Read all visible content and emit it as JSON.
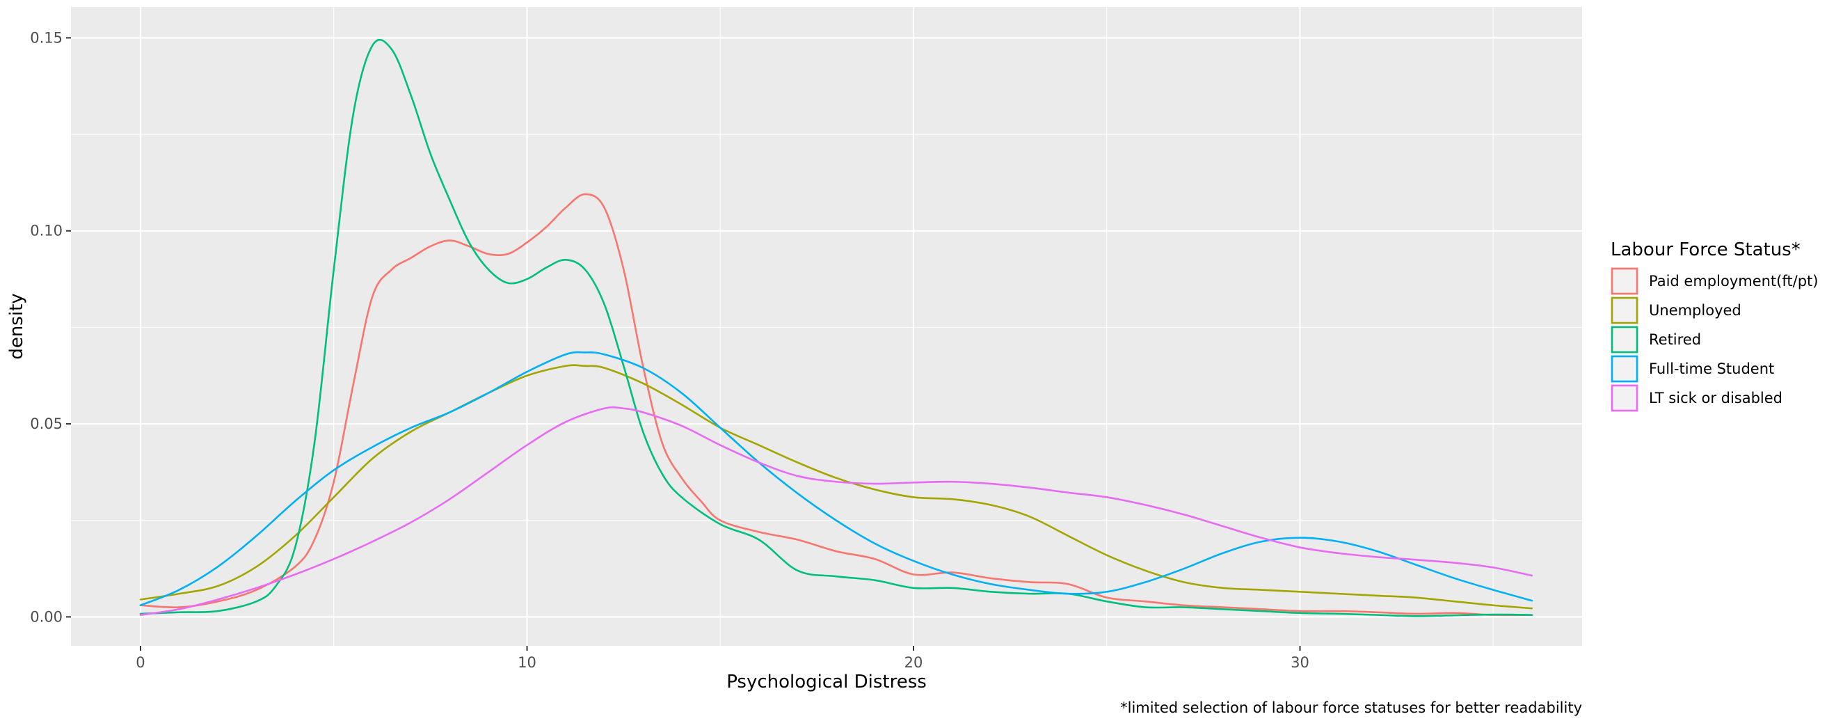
{
  "chart_data": {
    "type": "line",
    "xlabel": "Psychological Distress",
    "ylabel": "density",
    "caption": "*limited selection of labour force statuses for better readability",
    "xlim": [
      -1.8,
      37.3
    ],
    "ylim": [
      -0.0075,
      0.158
    ],
    "x_ticks": [
      0,
      10,
      20,
      30
    ],
    "x_tick_labels": [
      "0",
      "10",
      "20",
      "30"
    ],
    "y_ticks": [
      0.0,
      0.05,
      0.1,
      0.15
    ],
    "y_tick_labels": [
      "0.00",
      "0.05",
      "0.10",
      "0.15"
    ],
    "grid": true,
    "legend": {
      "title": "Labour Force Status*",
      "position": "right"
    },
    "series": [
      {
        "name": "Paid employment(ft/pt)",
        "color": "#F8766D",
        "points": [
          [
            0,
            0.003
          ],
          [
            1,
            0.0025
          ],
          [
            2,
            0.004
          ],
          [
            3,
            0.007
          ],
          [
            4,
            0.013
          ],
          [
            4.5,
            0.02
          ],
          [
            5,
            0.035
          ],
          [
            5.5,
            0.06
          ],
          [
            6,
            0.083
          ],
          [
            6.5,
            0.09
          ],
          [
            7,
            0.093
          ],
          [
            7.5,
            0.096
          ],
          [
            8,
            0.0975
          ],
          [
            8.5,
            0.096
          ],
          [
            9,
            0.094
          ],
          [
            9.5,
            0.094
          ],
          [
            10,
            0.097
          ],
          [
            10.5,
            0.101
          ],
          [
            11,
            0.106
          ],
          [
            11.5,
            0.1095
          ],
          [
            12,
            0.106
          ],
          [
            12.5,
            0.09
          ],
          [
            13,
            0.065
          ],
          [
            13.5,
            0.045
          ],
          [
            14,
            0.036
          ],
          [
            14.5,
            0.03
          ],
          [
            15,
            0.025
          ],
          [
            16,
            0.022
          ],
          [
            17,
            0.02
          ],
          [
            18,
            0.017
          ],
          [
            19,
            0.015
          ],
          [
            20,
            0.011
          ],
          [
            21,
            0.0115
          ],
          [
            22,
            0.01
          ],
          [
            23,
            0.009
          ],
          [
            24,
            0.0085
          ],
          [
            25,
            0.005
          ],
          [
            26,
            0.004
          ],
          [
            27,
            0.003
          ],
          [
            28,
            0.0025
          ],
          [
            29,
            0.002
          ],
          [
            30,
            0.0015
          ],
          [
            31,
            0.0015
          ],
          [
            32,
            0.0012
          ],
          [
            33,
            0.0008
          ],
          [
            34,
            0.001
          ],
          [
            35,
            0.0005
          ],
          [
            36,
            0.0005
          ]
        ]
      },
      {
        "name": "Unemployed",
        "color": "#A3A500",
        "points": [
          [
            0,
            0.0045
          ],
          [
            1,
            0.006
          ],
          [
            2,
            0.008
          ],
          [
            3,
            0.013
          ],
          [
            4,
            0.021
          ],
          [
            5,
            0.031
          ],
          [
            6,
            0.041
          ],
          [
            7,
            0.048
          ],
          [
            8,
            0.053
          ],
          [
            9,
            0.058
          ],
          [
            10,
            0.0625
          ],
          [
            11,
            0.065
          ],
          [
            11.5,
            0.065
          ],
          [
            12,
            0.0645
          ],
          [
            13,
            0.0605
          ],
          [
            14,
            0.055
          ],
          [
            15,
            0.049
          ],
          [
            16,
            0.0445
          ],
          [
            17,
            0.04
          ],
          [
            18,
            0.036
          ],
          [
            19,
            0.033
          ],
          [
            20,
            0.031
          ],
          [
            21,
            0.0305
          ],
          [
            22,
            0.029
          ],
          [
            23,
            0.026
          ],
          [
            24,
            0.021
          ],
          [
            25,
            0.016
          ],
          [
            26,
            0.012
          ],
          [
            27,
            0.009
          ],
          [
            28,
            0.0075
          ],
          [
            29,
            0.007
          ],
          [
            30,
            0.0065
          ],
          [
            31,
            0.006
          ],
          [
            32,
            0.0055
          ],
          [
            33,
            0.005
          ],
          [
            34,
            0.004
          ],
          [
            35,
            0.003
          ],
          [
            36,
            0.0022
          ]
        ]
      },
      {
        "name": "Retired",
        "color": "#00BF7D",
        "points": [
          [
            0,
            0.0008
          ],
          [
            1,
            0.0012
          ],
          [
            2,
            0.0015
          ],
          [
            3,
            0.004
          ],
          [
            3.5,
            0.008
          ],
          [
            4,
            0.018
          ],
          [
            4.5,
            0.045
          ],
          [
            5,
            0.09
          ],
          [
            5.5,
            0.13
          ],
          [
            6,
            0.148
          ],
          [
            6.5,
            0.147
          ],
          [
            7,
            0.135
          ],
          [
            7.5,
            0.12
          ],
          [
            8,
            0.108
          ],
          [
            8.5,
            0.097
          ],
          [
            9,
            0.09
          ],
          [
            9.5,
            0.0865
          ],
          [
            10,
            0.0875
          ],
          [
            10.5,
            0.0905
          ],
          [
            11,
            0.0925
          ],
          [
            11.5,
            0.09
          ],
          [
            12,
            0.081
          ],
          [
            12.5,
            0.065
          ],
          [
            13,
            0.048
          ],
          [
            13.5,
            0.037
          ],
          [
            14,
            0.031
          ],
          [
            15,
            0.024
          ],
          [
            16,
            0.02
          ],
          [
            17,
            0.012
          ],
          [
            18,
            0.0105
          ],
          [
            19,
            0.0095
          ],
          [
            20,
            0.0075
          ],
          [
            21,
            0.0075
          ],
          [
            22,
            0.0065
          ],
          [
            23,
            0.006
          ],
          [
            24,
            0.006
          ],
          [
            25,
            0.004
          ],
          [
            26,
            0.0025
          ],
          [
            27,
            0.0025
          ],
          [
            28,
            0.002
          ],
          [
            29,
            0.0015
          ],
          [
            30,
            0.001
          ],
          [
            31,
            0.0008
          ],
          [
            32,
            0.0005
          ],
          [
            33,
            0.0002
          ],
          [
            34,
            0.0004
          ],
          [
            35,
            0.0006
          ],
          [
            36,
            0.0005
          ]
        ]
      },
      {
        "name": "Full-time Student",
        "color": "#00B0F6",
        "points": [
          [
            0,
            0.003
          ],
          [
            1,
            0.007
          ],
          [
            2,
            0.013
          ],
          [
            3,
            0.021
          ],
          [
            4,
            0.03
          ],
          [
            5,
            0.038
          ],
          [
            6,
            0.044
          ],
          [
            7,
            0.049
          ],
          [
            8,
            0.053
          ],
          [
            9,
            0.058
          ],
          [
            10,
            0.0635
          ],
          [
            11,
            0.068
          ],
          [
            11.5,
            0.0685
          ],
          [
            12,
            0.068
          ],
          [
            13,
            0.0645
          ],
          [
            14,
            0.058
          ],
          [
            15,
            0.049
          ],
          [
            16,
            0.04
          ],
          [
            17,
            0.032
          ],
          [
            18,
            0.025
          ],
          [
            19,
            0.019
          ],
          [
            20,
            0.0145
          ],
          [
            21,
            0.011
          ],
          [
            22,
            0.0085
          ],
          [
            23,
            0.007
          ],
          [
            24,
            0.006
          ],
          [
            25,
            0.0065
          ],
          [
            26,
            0.009
          ],
          [
            27,
            0.0125
          ],
          [
            28,
            0.0165
          ],
          [
            29,
            0.0195
          ],
          [
            30,
            0.0205
          ],
          [
            31,
            0.0195
          ],
          [
            32,
            0.017
          ],
          [
            33,
            0.0135
          ],
          [
            34,
            0.01
          ],
          [
            35,
            0.007
          ],
          [
            36,
            0.0042
          ]
        ]
      },
      {
        "name": "LT sick or disabled",
        "color": "#E76BF3",
        "points": [
          [
            0,
            0.0005
          ],
          [
            1,
            0.002
          ],
          [
            2,
            0.0045
          ],
          [
            3,
            0.0075
          ],
          [
            4,
            0.011
          ],
          [
            5,
            0.015
          ],
          [
            6,
            0.0195
          ],
          [
            7,
            0.0245
          ],
          [
            8,
            0.0305
          ],
          [
            9,
            0.0375
          ],
          [
            10,
            0.0445
          ],
          [
            11,
            0.0505
          ],
          [
            12,
            0.054
          ],
          [
            12.5,
            0.054
          ],
          [
            13,
            0.053
          ],
          [
            14,
            0.0495
          ],
          [
            15,
            0.0445
          ],
          [
            16,
            0.04
          ],
          [
            17,
            0.0365
          ],
          [
            18,
            0.035
          ],
          [
            19,
            0.0345
          ],
          [
            20,
            0.0348
          ],
          [
            21,
            0.035
          ],
          [
            22,
            0.0345
          ],
          [
            23,
            0.0335
          ],
          [
            24,
            0.0322
          ],
          [
            25,
            0.031
          ],
          [
            26,
            0.029
          ],
          [
            27,
            0.0265
          ],
          [
            28,
            0.0235
          ],
          [
            29,
            0.0205
          ],
          [
            30,
            0.018
          ],
          [
            31,
            0.0165
          ],
          [
            32,
            0.0155
          ],
          [
            33,
            0.0148
          ],
          [
            34,
            0.014
          ],
          [
            35,
            0.0128
          ],
          [
            36,
            0.0107
          ]
        ]
      }
    ]
  }
}
